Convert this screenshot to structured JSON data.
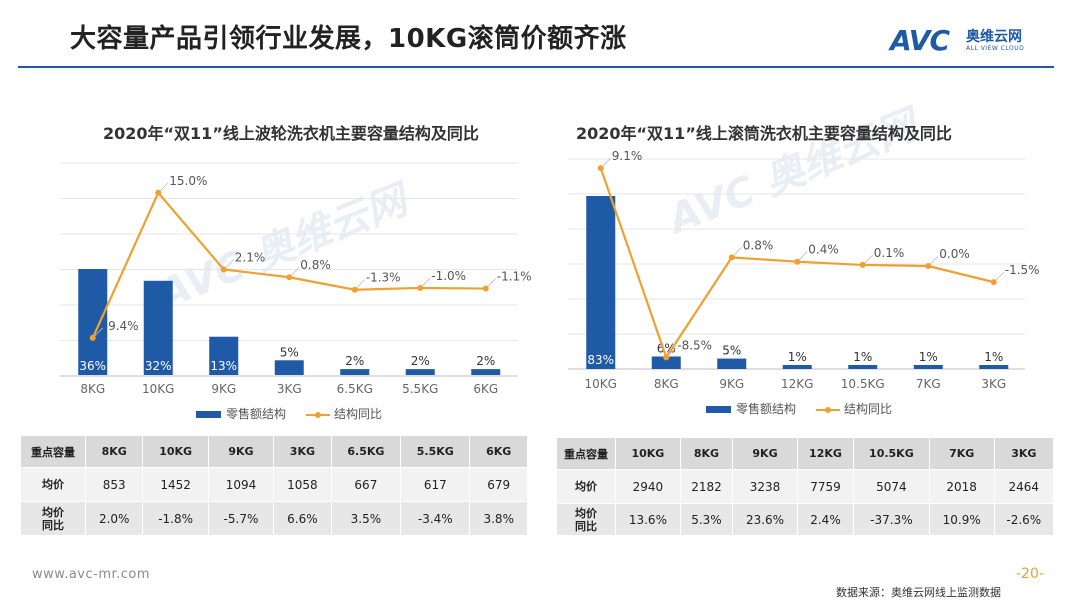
{
  "header": {
    "title": "大容量产品引领行业发展，10KG滚筒价额齐涨",
    "logo_mark": "AVC",
    "logo_cn": "奥维云网",
    "logo_en": "ALL VIEW CLOUD"
  },
  "chart_data": [
    {
      "type": "bar",
      "title": "2020年“双11”线上波轮洗衣机主要容量结构及同比",
      "categories": [
        "8KG",
        "10KG",
        "9KG",
        "3KG",
        "6.5KG",
        "5.5KG",
        "6KG"
      ],
      "series": [
        {
          "name": "零售额结构",
          "type": "bar",
          "values": [
            36,
            32,
            13,
            5,
            2,
            2,
            2
          ],
          "labels": [
            "36%",
            "32%",
            "13%",
            "5%",
            "2%",
            "2%",
            "2%"
          ]
        },
        {
          "name": "结构同比",
          "type": "line",
          "values": [
            -9.4,
            15.0,
            2.1,
            0.8,
            -1.3,
            -1.0,
            -1.1
          ],
          "labels": [
            "-9.4%",
            "15.0%",
            "2.1%",
            "0.8%",
            "-1.3%",
            "-1.0%",
            "-1.1%"
          ]
        }
      ],
      "legend": "bottom",
      "grid": true,
      "table": {
        "header": "重点容量",
        "cols": [
          "8KG",
          "10KG",
          "9KG",
          "3KG",
          "6.5KG",
          "5.5KG",
          "6KG"
        ],
        "rows": [
          {
            "label": "均价",
            "values": [
              "853",
              "1452",
              "1094",
              "1058",
              "667",
              "617",
              "679"
            ]
          },
          {
            "label": "均价\n同比",
            "values": [
              "2.0%",
              "-1.8%",
              "-5.7%",
              "6.6%",
              "3.5%",
              "-3.4%",
              "3.8%"
            ]
          }
        ]
      }
    },
    {
      "type": "bar",
      "title": "2020年“双11”线上滚筒洗衣机主要容量结构及同比",
      "categories": [
        "10KG",
        "8KG",
        "9KG",
        "12KG",
        "10.5KG",
        "7KG",
        "3KG"
      ],
      "series": [
        {
          "name": "零售额结构",
          "type": "bar",
          "values": [
            83,
            6,
            5,
            1,
            1,
            1,
            1
          ],
          "labels": [
            "83%",
            "6%",
            "5%",
            "1%",
            "1%",
            "1%",
            "1%"
          ]
        },
        {
          "name": "结构同比",
          "type": "line",
          "values": [
            9.1,
            -8.5,
            0.8,
            0.4,
            0.1,
            0.0,
            -1.5
          ],
          "labels": [
            "9.1%",
            "-8.5%",
            "0.8%",
            "0.4%",
            "0.1%",
            "0.0%",
            "-1.5%"
          ]
        }
      ],
      "legend": "bottom",
      "grid": true,
      "table": {
        "header": "重点容量",
        "cols": [
          "10KG",
          "8KG",
          "9KG",
          "12KG",
          "10.5KG",
          "7KG",
          "3KG"
        ],
        "rows": [
          {
            "label": "均价",
            "values": [
              "2940",
              "2182",
              "3238",
              "7759",
              "5074",
              "2018",
              "2464"
            ]
          },
          {
            "label": "均价\n同比",
            "values": [
              "13.6%",
              "5.3%",
              "23.6%",
              "2.4%",
              "-37.3%",
              "10.9%",
              "-2.6%"
            ]
          }
        ]
      }
    }
  ],
  "colors": {
    "bar": "#1f5aa6",
    "line": "#f0a030",
    "accent": "#1f5aa6"
  },
  "footer": {
    "url": "www.avc-mr.com",
    "page": "-20-",
    "source": "数据来源：奥维云网线上监测数据"
  }
}
